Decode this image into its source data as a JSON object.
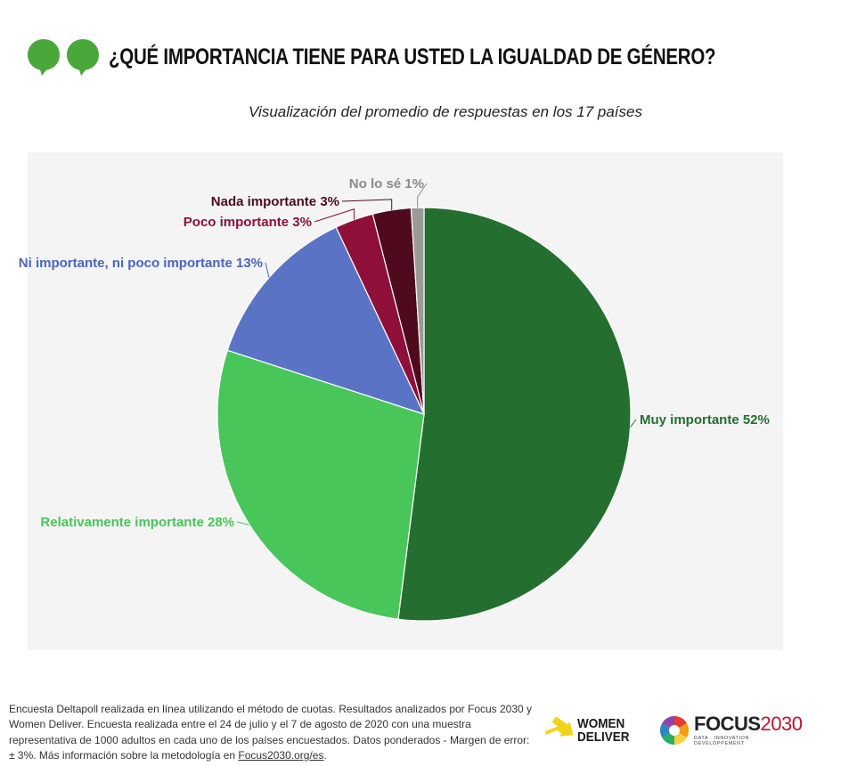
{
  "header": {
    "title": "¿QUÉ IMPORTANCIA TIENE PARA USTED LA IGUALDAD DE GÉNERO?",
    "subtitle": "Visualización del promedio de respuestas en los 17 países",
    "icon": "speech-bubbles-icon",
    "accent_color": "#4aa83b"
  },
  "chart_data": {
    "type": "pie",
    "title": "¿QUÉ IMPORTANCIA TIENE PARA USTED LA IGUALDAD DE GÉNERO?",
    "subtitle": "Visualización del promedio de respuestas en los 17 países",
    "slices": [
      {
        "label": "Muy importante 52%",
        "value": 52,
        "color": "#246f30",
        "text_color": "#246f30"
      },
      {
        "label": "Relativamente importante 28%",
        "value": 28,
        "color": "#48c65a",
        "text_color": "#48c65a"
      },
      {
        "label": "Ni importante, ni poco importante 13%",
        "value": 13,
        "color": "#5a73c5",
        "text_color": "#4a64c0"
      },
      {
        "label": "Poco importante 3%",
        "value": 3,
        "color": "#8e0f38",
        "text_color": "#8e0f38"
      },
      {
        "label": "Nada importante 3%",
        "value": 3,
        "color": "#4f0a1e",
        "text_color": "#4f0a1e"
      },
      {
        "label": "No lo sé 1%",
        "value": 1,
        "color": "#9a9a9a",
        "text_color": "#8a8a8a"
      }
    ]
  },
  "footer": {
    "text": "Encuesta Deltapoll realizada en línea utilizando el método de cuotas. Resultados analizados por Focus 2030 y Women Deliver. Encuesta realizada entre el 24 de julio y el 7 de agosto de 2020 con una muestra representativa de 1000 adultos en cada uno de los países encuestados. Datos ponderados - Margen de error: ± 3%. Más información sobre la metodología en ",
    "link_text": "Focus2030.org/es",
    "end": "."
  },
  "logos": {
    "women_deliver": {
      "line1": "WOMEN",
      "line2": "DELIVER",
      "icon": "arrow-icon",
      "color": "#f2d31b"
    },
    "focus": {
      "word": "FOCUS",
      "year": "2030",
      "tagline": "DATA · INNOVATION · DEVELOPPEMENT",
      "icon": "color-wheel-icon"
    }
  }
}
